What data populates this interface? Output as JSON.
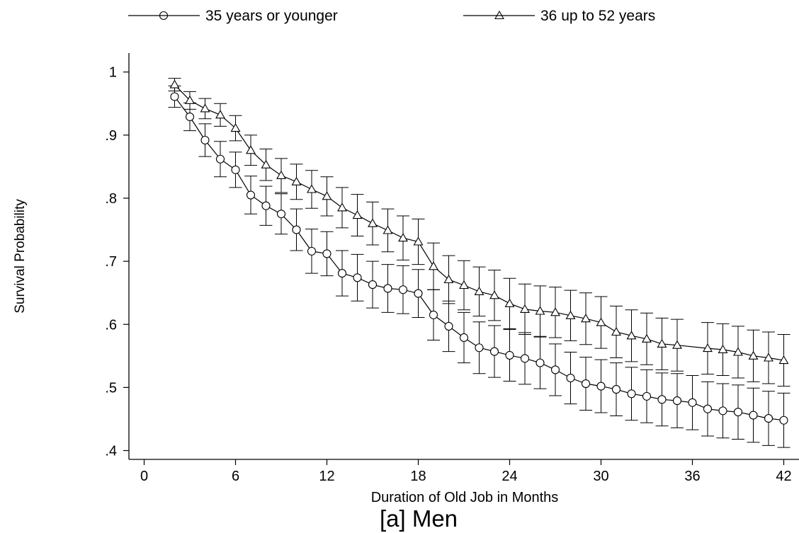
{
  "chart_data": {
    "type": "line",
    "title": "[a] Men",
    "xlabel": "Duration of Old Job in Months",
    "ylabel": "Survival Probability",
    "xlim": [
      -1,
      43
    ],
    "ylim": [
      0.386,
      1.03
    ],
    "xticks": [
      0,
      6,
      12,
      18,
      24,
      30,
      36,
      42
    ],
    "xtick_labels": [
      "0",
      "6",
      "12",
      "18",
      "24",
      "30",
      "36",
      "42"
    ],
    "yticks": [
      0.4,
      0.5,
      0.6,
      0.7,
      0.8,
      0.9,
      1.0
    ],
    "ytick_labels": [
      ".4",
      ".5",
      ".6",
      ".7",
      ".8",
      ".9",
      "1"
    ],
    "grid": false,
    "legend_position": "top",
    "series": [
      {
        "name": "35 years or younger",
        "marker": "circle",
        "x": [
          2,
          3,
          4,
          5,
          6,
          7,
          8,
          9,
          10,
          11,
          12,
          13,
          14,
          15,
          16,
          17,
          18,
          19,
          20,
          21,
          22,
          23,
          24,
          25,
          26,
          27,
          28,
          29,
          30,
          31,
          32,
          33,
          34,
          35,
          36,
          37,
          38,
          39,
          40,
          41,
          42
        ],
        "y": [
          0.961,
          0.929,
          0.892,
          0.862,
          0.845,
          0.805,
          0.788,
          0.775,
          0.75,
          0.716,
          0.712,
          0.681,
          0.674,
          0.663,
          0.657,
          0.655,
          0.649,
          0.615,
          0.597,
          0.579,
          0.563,
          0.557,
          0.551,
          0.546,
          0.539,
          0.528,
          0.515,
          0.506,
          0.502,
          0.497,
          0.49,
          0.486,
          0.481,
          0.479,
          0.476,
          0.466,
          0.463,
          0.461,
          0.456,
          0.451,
          0.448
        ],
        "err": [
          0.017,
          0.022,
          0.026,
          0.028,
          0.028,
          0.03,
          0.031,
          0.032,
          0.033,
          0.035,
          0.035,
          0.036,
          0.037,
          0.037,
          0.038,
          0.038,
          0.038,
          0.04,
          0.04,
          0.04,
          0.041,
          0.041,
          0.041,
          0.041,
          0.041,
          0.041,
          0.041,
          0.042,
          0.042,
          0.042,
          0.042,
          0.042,
          0.042,
          0.043,
          0.043,
          0.043,
          0.043,
          0.043,
          0.043,
          0.043,
          0.043
        ]
      },
      {
        "name": "36 up to 52 years",
        "marker": "triangle",
        "x": [
          2,
          3,
          4,
          5,
          6,
          7,
          8,
          9,
          10,
          11,
          12,
          13,
          14,
          15,
          16,
          17,
          18,
          19,
          20,
          21,
          22,
          23,
          24,
          25,
          26,
          27,
          28,
          29,
          30,
          31,
          32,
          33,
          34,
          35,
          37,
          38,
          39,
          40,
          41,
          42
        ],
        "y": [
          0.98,
          0.955,
          0.942,
          0.932,
          0.911,
          0.876,
          0.853,
          0.836,
          0.826,
          0.814,
          0.803,
          0.785,
          0.773,
          0.76,
          0.749,
          0.737,
          0.731,
          0.692,
          0.671,
          0.662,
          0.652,
          0.646,
          0.633,
          0.624,
          0.621,
          0.619,
          0.614,
          0.609,
          0.603,
          0.588,
          0.582,
          0.577,
          0.569,
          0.567,
          0.562,
          0.56,
          0.556,
          0.55,
          0.547,
          0.543
        ],
        "err": [
          0.01,
          0.014,
          0.016,
          0.018,
          0.02,
          0.024,
          0.025,
          0.027,
          0.028,
          0.03,
          0.031,
          0.032,
          0.033,
          0.034,
          0.034,
          0.035,
          0.036,
          0.037,
          0.038,
          0.039,
          0.039,
          0.04,
          0.04,
          0.04,
          0.04,
          0.04,
          0.04,
          0.041,
          0.041,
          0.041,
          0.041,
          0.041,
          0.041,
          0.041,
          0.041,
          0.041,
          0.041,
          0.041,
          0.041,
          0.041
        ]
      }
    ]
  }
}
